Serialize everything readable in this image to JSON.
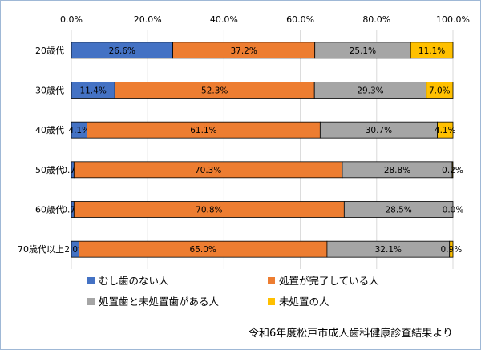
{
  "chart_data": {
    "type": "bar",
    "orientation": "horizontal",
    "stacked": "percent",
    "categories": [
      "20歳代",
      "30歳代",
      "40歳代",
      "50歳代",
      "60歳代",
      "70歳代以上"
    ],
    "series": [
      {
        "name": "むし歯のない人",
        "color": "#4472c4",
        "values": [
          26.6,
          11.4,
          4.1,
          0.7,
          0.7,
          2.0
        ]
      },
      {
        "name": "処置が完了している人",
        "color": "#ed7d31",
        "values": [
          37.2,
          52.3,
          61.1,
          70.3,
          70.8,
          65.0
        ]
      },
      {
        "name": "処置歯と未処置歯がある人",
        "color": "#a5a5a5",
        "values": [
          25.1,
          29.3,
          30.7,
          28.8,
          28.5,
          32.1
        ]
      },
      {
        "name": "未処置の人",
        "color": "#ffc000",
        "values": [
          11.1,
          7.0,
          4.1,
          0.2,
          0.0,
          0.9
        ]
      }
    ],
    "xlim": [
      0,
      100
    ],
    "ticks": [
      "0.0%",
      "20.0%",
      "40.0%",
      "60.0%",
      "80.0%",
      "100.0%"
    ],
    "grid": true,
    "legend_position": "bottom",
    "source": "令和6年度松戸市成人歯科健康診査結果より"
  }
}
